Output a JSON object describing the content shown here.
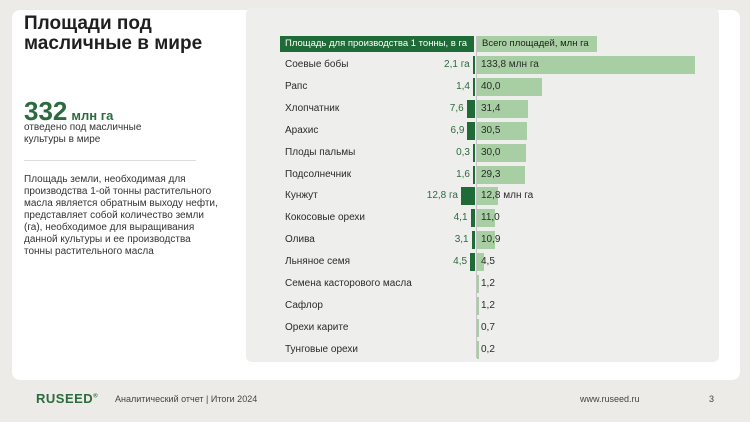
{
  "page": {
    "title": "Площади под масличные в мире",
    "stat_value": "332",
    "stat_unit": "млн га",
    "stat_caption": "отведено под масличные культуры в мире",
    "description": "Площадь земли, необходимая для производства 1-ой тонны растительного масла является обратным выходу нефти, представляет собой количество земли (га), необходимое для выращивания данной культуры и ее производства тонны растительного масла"
  },
  "footer": {
    "logo": "RUSEED",
    "logo_mark": "®",
    "report": "Аналитический отчет  |  Итоги 2024",
    "url": "www.ruseed.ru",
    "page_number": "3"
  },
  "colors": {
    "dark_green": "#1f6b38",
    "light_green": "#a7cfa3",
    "accent_text": "#2c6b3f"
  },
  "chart_data": {
    "type": "bar",
    "headers": {
      "left": "Площадь для производства 1 тонны, в га",
      "right": "Всего площадей, млн га"
    },
    "categories": [
      "Соевые бобы",
      "Рапс",
      "Хлопчатник",
      "Арахис",
      "Плоды пальмы",
      "Подсолнечник",
      "Кунжут",
      "Кокосовые орехи",
      "Олива",
      "Льняное семя",
      "Семена касторового масла",
      "Сафлор",
      "Орехи карите",
      "Тунговые орехи"
    ],
    "series": [
      {
        "name": "Площадь для производства 1 тонны, в га",
        "values": [
          2.1,
          1.4,
          7.6,
          6.9,
          0.3,
          1.6,
          12.8,
          4.1,
          3.1,
          4.5,
          null,
          null,
          null,
          null
        ],
        "labels": [
          "2,1 га",
          "1,4",
          "7,6",
          "6,9",
          "0,3",
          "1,6",
          "12,8 га",
          "4,1",
          "3,1",
          "4,5",
          "",
          "",
          "",
          ""
        ]
      },
      {
        "name": "Всего площадей, млн га",
        "values": [
          133.8,
          40.0,
          31.4,
          30.5,
          30.0,
          29.3,
          12.8,
          11.0,
          10.9,
          4.5,
          1.2,
          1.2,
          0.7,
          0.2
        ],
        "labels": [
          "133,8 млн га",
          "40,0",
          "31,4",
          "30,5",
          "30,0",
          "29,3",
          "12,8 млн га",
          "11,0",
          "10,9",
          "4,5",
          "1,2",
          "1,2",
          "0,7",
          "0,2"
        ]
      }
    ]
  }
}
